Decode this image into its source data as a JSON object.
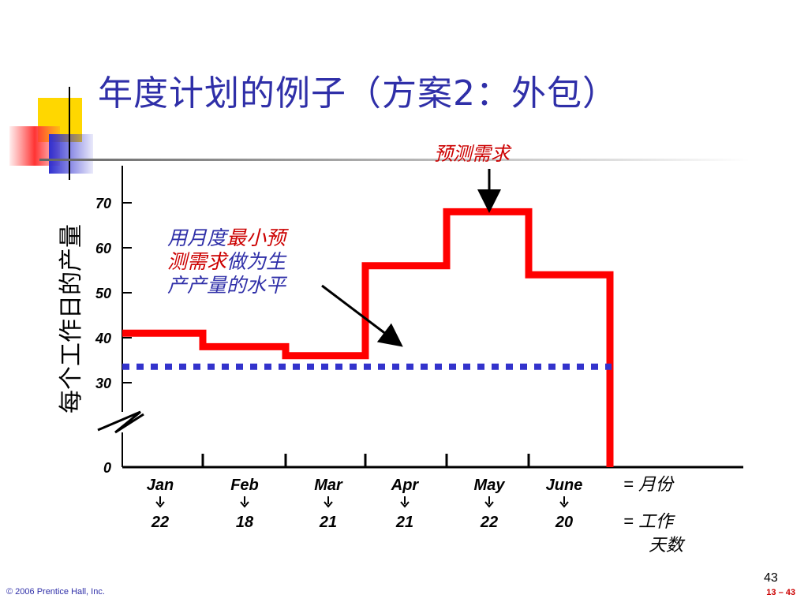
{
  "slide": {
    "title": "年度计划的例子（方案2：外包）",
    "footer_copyright": "© 2006 Prentice Hall, Inc.",
    "footer_slide_ref": "13 – 43",
    "page_number": "43"
  },
  "colors": {
    "title": "#2f2fa8",
    "forecast_line": "#ff0000",
    "production_level": "#3333cc",
    "annotation_blue": "#2f2fa8",
    "annotation_red": "#cc0000"
  },
  "chart_data": {
    "type": "line",
    "step": true,
    "ylabel": "每个工作日的产量",
    "y_ticks": [
      "0",
      "30",
      "40",
      "50",
      "60",
      "70"
    ],
    "axis_break": true,
    "categories": [
      "Jan",
      "Feb",
      "Mar",
      "Apr",
      "May",
      "June"
    ],
    "working_days": [
      "22",
      "18",
      "21",
      "21",
      "22",
      "20"
    ],
    "row_labels": {
      "months": "=  月份",
      "days_line1": "=  工作",
      "days_line2": "天数"
    },
    "series": [
      {
        "values": [
          41,
          38,
          36,
          56,
          68,
          54
        ],
        "style": "solid"
      },
      {
        "values": [
          36,
          36,
          36,
          36,
          36,
          36
        ],
        "style": "dotted"
      }
    ],
    "annotations": {
      "forecast_label": "预测需求",
      "level_line1": [
        {
          "text": "用月度",
          "color": "blue"
        },
        {
          "text": "最小预",
          "color": "red"
        }
      ],
      "level_line2": [
        {
          "text": "测需求",
          "color": "red"
        },
        {
          "text": "做为生",
          "color": "blue"
        }
      ],
      "level_line3": [
        {
          "text": "产产量的水平",
          "color": "blue"
        }
      ]
    }
  }
}
